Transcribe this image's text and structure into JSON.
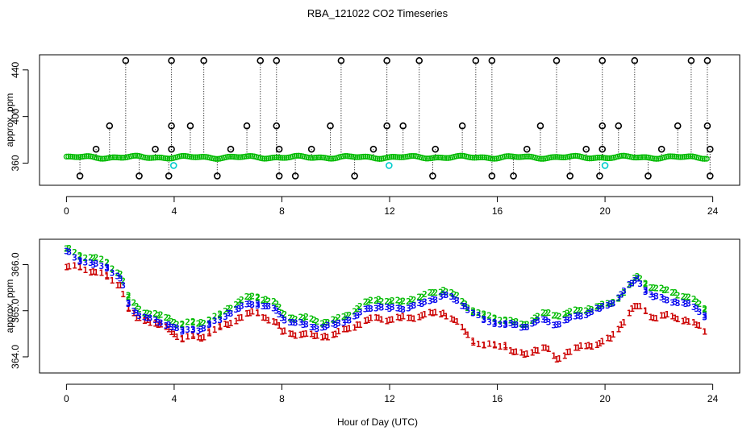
{
  "chart_data": {
    "title": "RBA_121022  CO2 Timeseries",
    "xlabel": "Hour of Day (UTC)",
    "x_ticks": [
      "0",
      "4",
      "8",
      "12",
      "16",
      "20",
      "24"
    ],
    "colors": {
      "axis": "#000000",
      "ch1": "#cc0000",
      "ch2": "#00bb00",
      "ch3": "#0000ee",
      "raw": "#000000",
      "cyan": "#00cccc"
    },
    "panels": [
      {
        "type": "scatter",
        "name": "raw-panel",
        "ylabel": "approx. ppm",
        "xlim": [
          -1,
          25
        ],
        "ylim": [
          341,
          453
        ],
        "y_ticks": [
          "360",
          "400",
          "440"
        ],
        "baseline_ppm": 365,
        "outliers_high": [
          2.2,
          3.9,
          5.1,
          7.2,
          7.8,
          10.2,
          11.9,
          13.1,
          15.2,
          15.8,
          18.2,
          19.9,
          21.1,
          23.2,
          23.8
        ],
        "outliers_392": [
          1.6,
          3.9,
          4.6,
          6.7,
          7.8,
          9.8,
          11.9,
          12.5,
          14.7,
          17.6,
          19.9,
          20.5,
          22.7,
          23.8
        ],
        "outliers_372": [
          1.1,
          3.3,
          3.9,
          6.1,
          7.9,
          9.1,
          11.4,
          13.7,
          17.1,
          19.3,
          19.9,
          22.1,
          23.9
        ],
        "outliers_low": [
          0.5,
          2.7,
          3.8,
          5.6,
          7.9,
          8.5,
          10.7,
          13.6,
          15.8,
          16.6,
          18.7,
          19.8,
          21.6,
          23.9
        ],
        "cyan_points": [
          [
            3.98,
            358
          ],
          [
            11.98,
            358
          ],
          [
            20.0,
            358
          ]
        ]
      },
      {
        "type": "line",
        "name": "cal-panel",
        "ylabel": "approx. ppm",
        "xlim": [
          -1,
          25
        ],
        "ylim": [
          363.65,
          366.55
        ],
        "y_ticks": [
          "364.0",
          "365.0",
          "366.0"
        ],
        "series": [
          {
            "name": "1",
            "marker": "1",
            "x": [
              0,
              0.5,
              1,
              1.5,
              2,
              2.3,
              2.6,
              3,
              3.4,
              3.8,
              4,
              4.3,
              4.7,
              5,
              5.3,
              5.7,
              6,
              6.4,
              6.8,
              7.1,
              7.4,
              7.8,
              8,
              8.4,
              8.8,
              9.2,
              9.6,
              10,
              10.4,
              10.8,
              11.2,
              11.6,
              12,
              12.4,
              12.8,
              13.2,
              13.6,
              14,
              14.4,
              14.8,
              15.1,
              15.5,
              15.9,
              16.3,
              16.6,
              17,
              17.4,
              17.8,
              18.2,
              18.6,
              19,
              19.4,
              19.8,
              20.2,
              20.6,
              21,
              21.2,
              21.5,
              21.8,
              22.2,
              22.6,
              23,
              23.4,
              23.7
            ],
            "y": [
              365.95,
              365.95,
              365.85,
              365.75,
              365.55,
              365.05,
              364.85,
              364.8,
              364.7,
              364.6,
              364.5,
              364.4,
              364.45,
              364.4,
              364.55,
              364.65,
              364.7,
              364.85,
              364.95,
              364.95,
              364.85,
              364.75,
              364.55,
              364.5,
              364.5,
              364.45,
              364.45,
              364.5,
              364.6,
              364.7,
              364.8,
              364.85,
              364.8,
              364.85,
              364.85,
              364.9,
              364.95,
              364.95,
              364.8,
              364.55,
              364.35,
              364.25,
              364.25,
              364.25,
              364.1,
              364.05,
              364.15,
              364.2,
              363.95,
              364.1,
              364.2,
              364.25,
              364.3,
              364.4,
              364.7,
              365.05,
              365.1,
              365.0,
              364.85,
              364.9,
              364.85,
              364.8,
              364.7,
              364.55
            ]
          },
          {
            "name": "2",
            "marker": "2",
            "x": [
              0,
              0.5,
              1,
              1.5,
              2,
              2.3,
              2.6,
              3,
              3.4,
              3.8,
              4,
              4.3,
              4.7,
              5,
              5.3,
              5.7,
              6,
              6.4,
              6.8,
              7.1,
              7.4,
              7.8,
              8,
              8.4,
              8.8,
              9.2,
              9.6,
              10,
              10.4,
              10.8,
              11.2,
              11.6,
              12,
              12.4,
              12.8,
              13.2,
              13.6,
              14,
              14.4,
              14.8,
              15.1,
              15.5,
              15.9,
              16.3,
              16.6,
              17,
              17.4,
              17.8,
              18.2,
              18.6,
              19,
              19.4,
              19.8,
              20.2,
              20.6,
              21,
              21.2,
              21.5,
              21.8,
              22.2,
              22.6,
              23,
              23.4,
              23.7
            ],
            "y": [
              366.35,
              366.2,
              366.15,
              366.05,
              365.8,
              365.3,
              365.1,
              364.95,
              364.9,
              364.85,
              364.75,
              364.7,
              364.75,
              364.75,
              364.8,
              364.9,
              365.05,
              365.2,
              365.3,
              365.3,
              365.25,
              365.15,
              364.95,
              364.85,
              364.85,
              364.8,
              364.75,
              364.8,
              364.9,
              365.05,
              365.2,
              365.25,
              365.2,
              365.2,
              365.25,
              365.3,
              365.4,
              365.45,
              365.35,
              365.15,
              365.0,
              364.9,
              364.85,
              364.8,
              364.75,
              364.7,
              364.85,
              364.95,
              364.9,
              364.95,
              365.0,
              365.05,
              365.1,
              365.15,
              365.35,
              365.6,
              365.75,
              365.6,
              365.5,
              365.45,
              365.4,
              365.3,
              365.2,
              365.05
            ]
          },
          {
            "name": "3",
            "marker": "3",
            "x": [
              0,
              0.5,
              1,
              1.5,
              2,
              2.3,
              2.6,
              3,
              3.4,
              3.8,
              4,
              4.3,
              4.7,
              5,
              5.3,
              5.7,
              6,
              6.4,
              6.8,
              7.1,
              7.4,
              7.8,
              8,
              8.4,
              8.8,
              9.2,
              9.6,
              10,
              10.4,
              10.8,
              11.2,
              11.6,
              12,
              12.4,
              12.8,
              13.2,
              13.6,
              14,
              14.4,
              14.8,
              15.1,
              15.5,
              15.9,
              16.3,
              16.6,
              17,
              17.4,
              17.8,
              18.2,
              18.6,
              19,
              19.4,
              19.8,
              20.2,
              20.6,
              21,
              21.2,
              21.5,
              21.8,
              22.2,
              22.6,
              23,
              23.4,
              23.7
            ],
            "y": [
              366.3,
              366.1,
              366.0,
              365.95,
              365.7,
              365.15,
              364.95,
              364.85,
              364.75,
              364.7,
              364.65,
              364.55,
              364.6,
              364.6,
              364.7,
              364.8,
              364.95,
              365.05,
              365.15,
              365.15,
              365.1,
              365.0,
              364.85,
              364.75,
              364.7,
              364.65,
              364.65,
              364.7,
              364.8,
              364.9,
              365.05,
              365.1,
              365.05,
              365.05,
              365.1,
              365.15,
              365.25,
              365.35,
              365.25,
              365.1,
              364.95,
              364.8,
              364.75,
              364.7,
              364.7,
              364.65,
              364.75,
              364.8,
              364.7,
              364.8,
              364.9,
              364.95,
              365.05,
              365.15,
              365.35,
              365.6,
              365.7,
              365.45,
              365.3,
              365.25,
              365.2,
              365.15,
              365.05,
              364.9
            ]
          }
        ]
      }
    ]
  }
}
